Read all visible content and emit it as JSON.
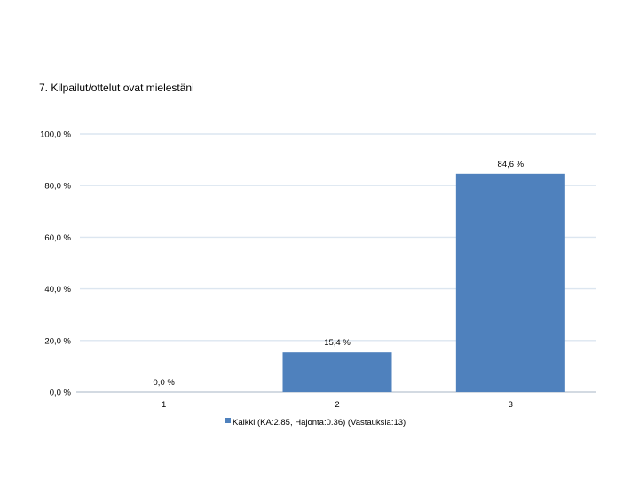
{
  "page": {
    "title": "7. Kilpailut/ottelut ovat mielestäni"
  },
  "chart_data": {
    "type": "bar",
    "categories": [
      "1",
      "2",
      "3"
    ],
    "series": [
      {
        "name": "Kaikki (KA:2.85, Hajonta:0.36) (Vastauksia:13)",
        "values": [
          0.0,
          15.4,
          84.6
        ],
        "value_labels": [
          "0,0 %",
          "15,4 %",
          "84,6 %"
        ],
        "color": "#4f81bd"
      }
    ],
    "ylim": [
      0,
      100
    ],
    "yticks": [
      0,
      20,
      40,
      60,
      80,
      100
    ],
    "ytick_labels": [
      "0,0 %",
      "20,0 %",
      "40,0 %",
      "60,0 %",
      "80,0 %",
      "100,0 %"
    ],
    "grid": true,
    "grid_color": "#dce6f0",
    "legend_position": "bottom"
  }
}
